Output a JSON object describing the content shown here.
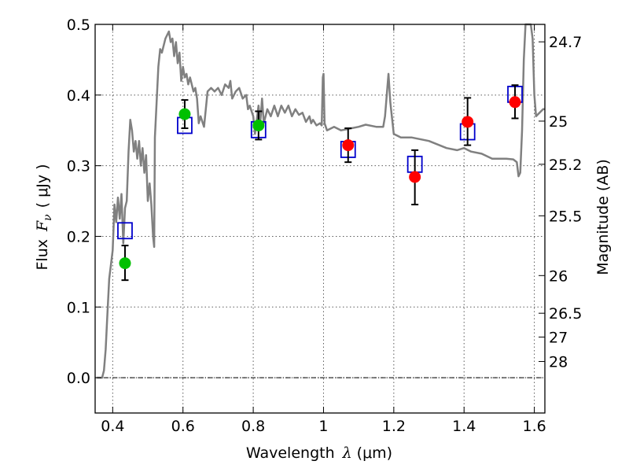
{
  "chart_data": {
    "type": "scatter",
    "xlabel": "Wavelength",
    "xlabel_symbol": "λ",
    "xlabel_unit": "(μm)",
    "ylabel_left": "Flux",
    "ylabel_left_symbol": "F",
    "ylabel_left_sub": "ν",
    "ylabel_left_unit": "( μJy )",
    "ylabel_right": "Magnitude (AB)",
    "xlim": [
      0.35,
      1.63
    ],
    "ylim": [
      -0.05,
      0.5
    ],
    "xticks": [
      0.4,
      0.6,
      0.8,
      1.0,
      1.2,
      1.4,
      1.6
    ],
    "xtick_labels": [
      "0.4",
      "0.6",
      "0.8",
      "1",
      "1.2",
      "1.4",
      "1.6"
    ],
    "yticks": [
      0.0,
      0.1,
      0.2,
      0.3,
      0.4,
      0.5
    ],
    "ytick_labels": [
      "0.0",
      "0.1",
      "0.2",
      "0.3",
      "0.4",
      "0.5"
    ],
    "right_ticks": [
      {
        "label": "24.7",
        "flux": 0.4753
      },
      {
        "label": "25",
        "flux": 0.3631
      },
      {
        "label": "25.2",
        "flux": 0.302
      },
      {
        "label": "25.5",
        "flux": 0.2291
      },
      {
        "label": "26",
        "flux": 0.1445
      },
      {
        "label": "26.5",
        "flux": 0.0912
      },
      {
        "label": "27",
        "flux": 0.0575
      },
      {
        "label": "28",
        "flux": 0.0229
      }
    ],
    "grid": true,
    "zero_line": true,
    "colors": {
      "model": "#808080",
      "model_boxes": "#0000cc",
      "obs_green": "#00c000",
      "obs_red": "#ff0000",
      "errorbar": "#000000"
    },
    "model_spectrum": [
      [
        0.355,
        0.0
      ],
      [
        0.37,
        0.0
      ],
      [
        0.375,
        0.01
      ],
      [
        0.38,
        0.04
      ],
      [
        0.385,
        0.09
      ],
      [
        0.39,
        0.14
      ],
      [
        0.395,
        0.16
      ],
      [
        0.4,
        0.18
      ],
      [
        0.405,
        0.245
      ],
      [
        0.41,
        0.22
      ],
      [
        0.415,
        0.255
      ],
      [
        0.42,
        0.225
      ],
      [
        0.425,
        0.26
      ],
      [
        0.43,
        0.19
      ],
      [
        0.435,
        0.24
      ],
      [
        0.44,
        0.25
      ],
      [
        0.445,
        0.32
      ],
      [
        0.45,
        0.365
      ],
      [
        0.455,
        0.35
      ],
      [
        0.46,
        0.32
      ],
      [
        0.465,
        0.335
      ],
      [
        0.47,
        0.31
      ],
      [
        0.475,
        0.335
      ],
      [
        0.48,
        0.3
      ],
      [
        0.485,
        0.325
      ],
      [
        0.49,
        0.29
      ],
      [
        0.495,
        0.315
      ],
      [
        0.5,
        0.25
      ],
      [
        0.505,
        0.275
      ],
      [
        0.51,
        0.245
      ],
      [
        0.515,
        0.2
      ],
      [
        0.518,
        0.185
      ],
      [
        0.52,
        0.34
      ],
      [
        0.53,
        0.44
      ],
      [
        0.535,
        0.465
      ],
      [
        0.54,
        0.46
      ],
      [
        0.55,
        0.48
      ],
      [
        0.56,
        0.49
      ],
      [
        0.565,
        0.475
      ],
      [
        0.57,
        0.48
      ],
      [
        0.575,
        0.455
      ],
      [
        0.58,
        0.475
      ],
      [
        0.585,
        0.445
      ],
      [
        0.59,
        0.46
      ],
      [
        0.595,
        0.42
      ],
      [
        0.6,
        0.44
      ],
      [
        0.605,
        0.425
      ],
      [
        0.61,
        0.43
      ],
      [
        0.615,
        0.415
      ],
      [
        0.62,
        0.425
      ],
      [
        0.63,
        0.405
      ],
      [
        0.635,
        0.41
      ],
      [
        0.64,
        0.395
      ],
      [
        0.645,
        0.36
      ],
      [
        0.65,
        0.37
      ],
      [
        0.66,
        0.355
      ],
      [
        0.67,
        0.405
      ],
      [
        0.68,
        0.41
      ],
      [
        0.69,
        0.405
      ],
      [
        0.7,
        0.41
      ],
      [
        0.71,
        0.4
      ],
      [
        0.72,
        0.415
      ],
      [
        0.73,
        0.41
      ],
      [
        0.735,
        0.42
      ],
      [
        0.74,
        0.395
      ],
      [
        0.75,
        0.405
      ],
      [
        0.76,
        0.41
      ],
      [
        0.77,
        0.395
      ],
      [
        0.78,
        0.4
      ],
      [
        0.785,
        0.38
      ],
      [
        0.79,
        0.385
      ],
      [
        0.8,
        0.37
      ],
      [
        0.805,
        0.345
      ],
      [
        0.81,
        0.365
      ],
      [
        0.815,
        0.385
      ],
      [
        0.82,
        0.36
      ],
      [
        0.825,
        0.395
      ],
      [
        0.83,
        0.36
      ],
      [
        0.84,
        0.38
      ],
      [
        0.85,
        0.37
      ],
      [
        0.86,
        0.385
      ],
      [
        0.87,
        0.37
      ],
      [
        0.88,
        0.385
      ],
      [
        0.89,
        0.375
      ],
      [
        0.9,
        0.385
      ],
      [
        0.91,
        0.37
      ],
      [
        0.92,
        0.38
      ],
      [
        0.93,
        0.372
      ],
      [
        0.94,
        0.375
      ],
      [
        0.95,
        0.362
      ],
      [
        0.96,
        0.37
      ],
      [
        0.965,
        0.36
      ],
      [
        0.97,
        0.365
      ],
      [
        0.98,
        0.357
      ],
      [
        0.99,
        0.36
      ],
      [
        0.995,
        0.357
      ],
      [
        0.998,
        0.425
      ],
      [
        1.0,
        0.43
      ],
      [
        1.003,
        0.36
      ],
      [
        1.01,
        0.35
      ],
      [
        1.03,
        0.355
      ],
      [
        1.05,
        0.35
      ],
      [
        1.07,
        0.352
      ],
      [
        1.1,
        0.355
      ],
      [
        1.12,
        0.358
      ],
      [
        1.15,
        0.355
      ],
      [
        1.17,
        0.355
      ],
      [
        1.175,
        0.37
      ],
      [
        1.18,
        0.4
      ],
      [
        1.185,
        0.43
      ],
      [
        1.19,
        0.39
      ],
      [
        1.2,
        0.345
      ],
      [
        1.22,
        0.34
      ],
      [
        1.25,
        0.34
      ],
      [
        1.3,
        0.335
      ],
      [
        1.35,
        0.325
      ],
      [
        1.38,
        0.322
      ],
      [
        1.4,
        0.325
      ],
      [
        1.42,
        0.32
      ],
      [
        1.45,
        0.317
      ],
      [
        1.48,
        0.31
      ],
      [
        1.5,
        0.31
      ],
      [
        1.52,
        0.31
      ],
      [
        1.54,
        0.309
      ],
      [
        1.55,
        0.305
      ],
      [
        1.555,
        0.285
      ],
      [
        1.56,
        0.29
      ],
      [
        1.565,
        0.35
      ],
      [
        1.57,
        0.45
      ],
      [
        1.575,
        0.5
      ],
      [
        1.58,
        0.51
      ],
      [
        1.59,
        0.51
      ],
      [
        1.595,
        0.48
      ],
      [
        1.6,
        0.4
      ],
      [
        1.605,
        0.37
      ],
      [
        1.615,
        0.375
      ],
      [
        1.625,
        0.38
      ],
      [
        1.63,
        0.38
      ]
    ],
    "model_boxes": [
      {
        "x": 0.435,
        "y": 0.208
      },
      {
        "x": 0.605,
        "y": 0.357
      },
      {
        "x": 0.815,
        "y": 0.351
      },
      {
        "x": 1.07,
        "y": 0.323
      },
      {
        "x": 1.26,
        "y": 0.302
      },
      {
        "x": 1.41,
        "y": 0.348
      },
      {
        "x": 1.545,
        "y": 0.401
      }
    ],
    "observations": [
      {
        "x": 0.435,
        "y": 0.162,
        "err_low": 0.138,
        "err_high": 0.187,
        "color": "green"
      },
      {
        "x": 0.605,
        "y": 0.373,
        "err_low": 0.353,
        "err_high": 0.393,
        "color": "green"
      },
      {
        "x": 0.815,
        "y": 0.357,
        "err_low": 0.337,
        "err_high": 0.377,
        "color": "green"
      },
      {
        "x": 1.07,
        "y": 0.329,
        "err_low": 0.305,
        "err_high": 0.353,
        "color": "red"
      },
      {
        "x": 1.26,
        "y": 0.284,
        "err_low": 0.245,
        "err_high": 0.322,
        "color": "red"
      },
      {
        "x": 1.41,
        "y": 0.362,
        "err_low": 0.329,
        "err_high": 0.396,
        "color": "red"
      },
      {
        "x": 1.545,
        "y": 0.39,
        "err_low": 0.367,
        "err_high": 0.414,
        "color": "red"
      }
    ]
  }
}
